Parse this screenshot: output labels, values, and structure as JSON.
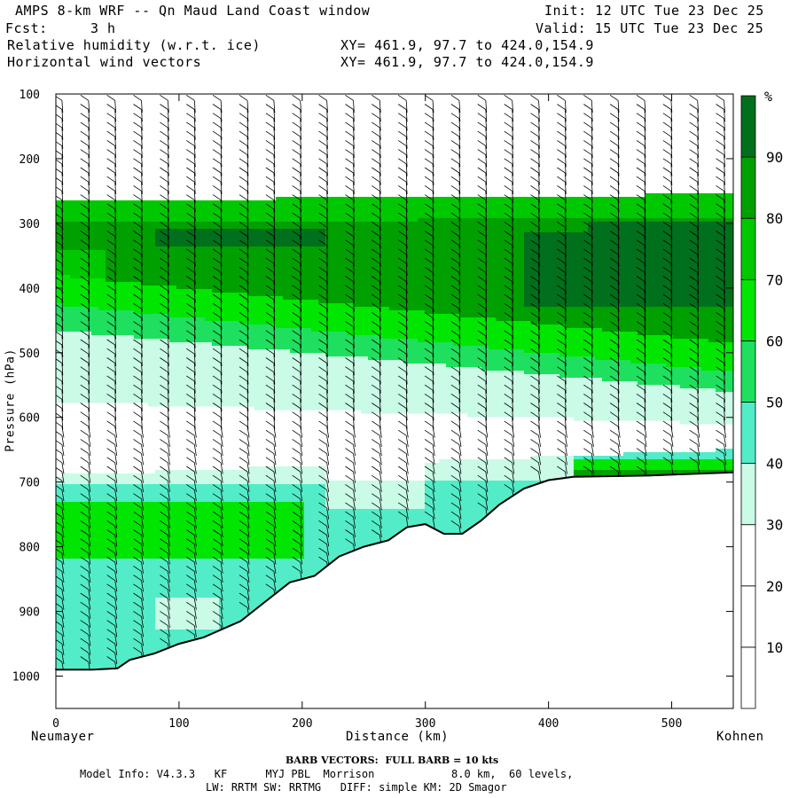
{
  "header": {
    "title": "AMPS 8-km WRF -- Qn Maud Land Coast window",
    "fcst_label": "Fcst:",
    "fcst_value": "3 h",
    "init": "Init: 12 UTC Tue 23 Dec 25",
    "valid": "Valid: 15 UTC Tue 23 Dec 25",
    "field1": "Relative humidity (w.r.t. ice)",
    "field2": "Horizontal wind vectors",
    "xy1": "XY= 461.9, 97.7 to 424.0,154.9",
    "xy2": "XY= 461.9, 97.7 to 424.0,154.9"
  },
  "footer": {
    "barb_note": "BARB VECTORS:  FULL BARB = 10 kts",
    "model_info": "Model Info: V4.3.3   KF      MYJ PBL  Morrison            8.0 km,  60 levels,",
    "model_info2": "LW: RRTM SW: RRTMG   DIFF: simple KM: 2D Smagor"
  },
  "colors": {
    "rh_levels": [
      "#ffffff",
      "#ffffff",
      "#ffffff",
      "#c9fbe6",
      "#52ecc8",
      "#1ee05e",
      "#00e600",
      "#00c800",
      "#00a000",
      "#00701c"
    ]
  },
  "chart_data": {
    "type": "heatmap",
    "title": "Relative humidity (w.r.t. ice)",
    "xlabel": "Distance (km)",
    "ylabel": "Pressure (hPa)",
    "xlim": [
      0,
      550
    ],
    "ylim": [
      1050,
      100
    ],
    "x_ticks": [
      0,
      100,
      200,
      300,
      400,
      500
    ],
    "y_ticks": [
      100,
      200,
      300,
      400,
      500,
      600,
      700,
      800,
      900,
      1000
    ],
    "x_start_label": "Neumayer",
    "x_end_label": "Kohnen",
    "colorbar": {
      "unit": "%",
      "levels": [
        0,
        10,
        20,
        30,
        40,
        50,
        60,
        70,
        80,
        90,
        100
      ],
      "tick_labels": [
        10,
        20,
        30,
        40,
        50,
        60,
        70,
        80,
        90
      ]
    },
    "terrain_surface": [
      {
        "x": 0,
        "p": 990
      },
      {
        "x": 30,
        "p": 990
      },
      {
        "x": 50,
        "p": 988
      },
      {
        "x": 60,
        "p": 975
      },
      {
        "x": 80,
        "p": 965
      },
      {
        "x": 100,
        "p": 950
      },
      {
        "x": 120,
        "p": 940
      },
      {
        "x": 150,
        "p": 915
      },
      {
        "x": 170,
        "p": 885
      },
      {
        "x": 190,
        "p": 855
      },
      {
        "x": 210,
        "p": 845
      },
      {
        "x": 230,
        "p": 815
      },
      {
        "x": 250,
        "p": 800
      },
      {
        "x": 270,
        "p": 790
      },
      {
        "x": 285,
        "p": 770
      },
      {
        "x": 300,
        "p": 765
      },
      {
        "x": 315,
        "p": 780
      },
      {
        "x": 330,
        "p": 780
      },
      {
        "x": 345,
        "p": 760
      },
      {
        "x": 360,
        "p": 735
      },
      {
        "x": 380,
        "p": 710
      },
      {
        "x": 400,
        "p": 697
      },
      {
        "x": 420,
        "p": 692
      },
      {
        "x": 480,
        "p": 690
      },
      {
        "x": 550,
        "p": 685
      }
    ],
    "rh_bands": [
      {
        "range": "0-20",
        "left_p": [
          100,
          265
        ],
        "right_p": [
          100,
          255
        ]
      },
      {
        "range": "70-80",
        "left_p": [
          265,
          300
        ],
        "right_p": [
          255,
          285
        ]
      },
      {
        "range": "80-90",
        "left_p": [
          300,
          380
        ],
        "right_p": [
          285,
          480
        ]
      },
      {
        "range": "90-100",
        "note": "core near 320 hPa and 400 hPa east of 380 km"
      },
      {
        "range": "60-70",
        "left_p": [
          380,
          430
        ],
        "right_p": [
          480,
          530
        ]
      },
      {
        "range": "50-60",
        "left_p": [
          430,
          470
        ],
        "right_p": [
          530,
          560
        ]
      },
      {
        "range": "30-40",
        "left_p": [
          470,
          580
        ],
        "right_p": [
          560,
          610
        ]
      },
      {
        "range": "0-20",
        "left_p": [
          580,
          690
        ],
        "right_p": [
          610,
          650
        ]
      },
      {
        "range": "30-40",
        "left_p": [
          690,
          705
        ]
      },
      {
        "range": "60-70",
        "left_p": [
          705,
          820
        ],
        "note": "low-level moist layer west of 220 km"
      }
    ]
  }
}
